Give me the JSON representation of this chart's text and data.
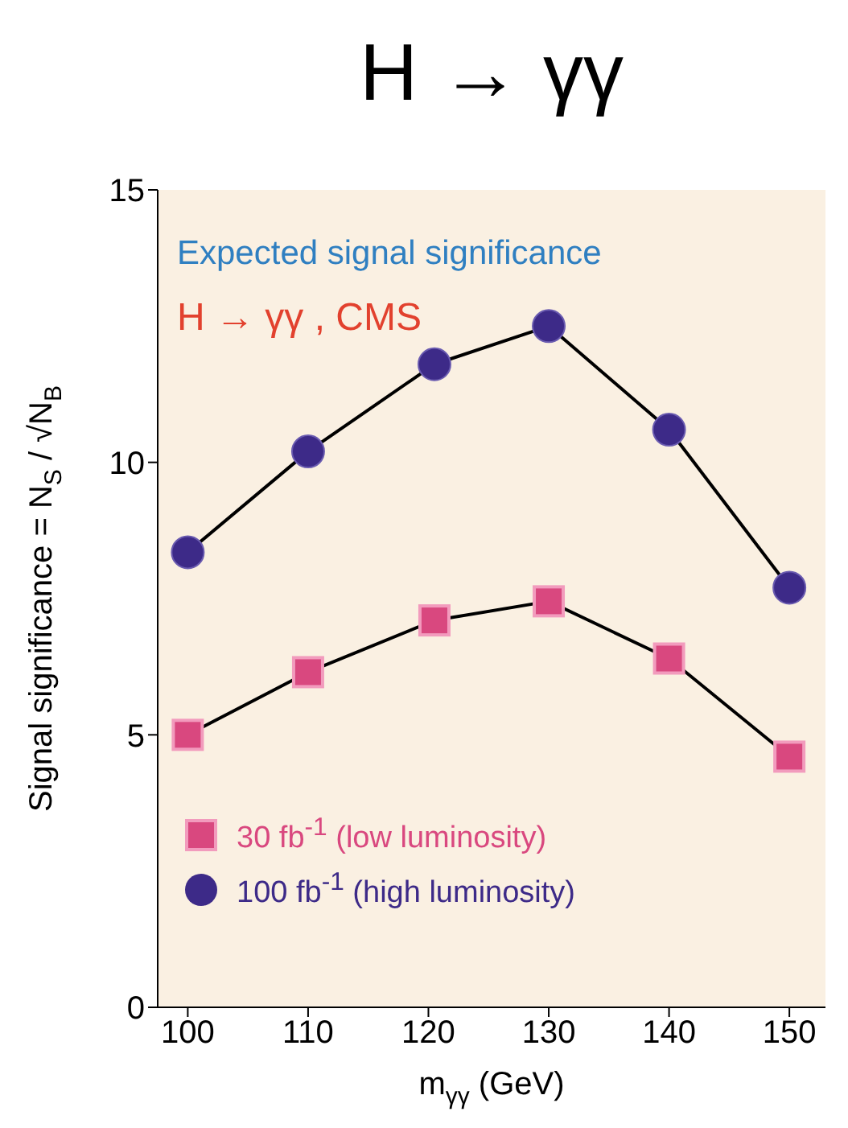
{
  "chart_data": {
    "type": "line",
    "title": "H → γγ",
    "xlabel": "m$_{γγ}$ (GeV)",
    "ylabel": "Signal significance = N$_{S}$ / √N$_{B}$",
    "annotations": [
      "Expected signal significance",
      "H → γγ , CMS"
    ],
    "x": [
      100,
      110,
      120.5,
      130,
      140,
      150
    ],
    "series": [
      {
        "name": "30 fb$^{-1}$ (low luminosity)",
        "color": "#d9487f",
        "marker": "square",
        "values": [
          5.0,
          6.15,
          7.1,
          7.45,
          6.4,
          4.6
        ]
      },
      {
        "name": "100 fb$^{-1}$ (high luminosity)",
        "color": "#3d2a88",
        "marker": "circle",
        "values": [
          8.35,
          10.2,
          11.8,
          12.5,
          10.6,
          7.7
        ]
      }
    ],
    "xlim": [
      97.5,
      153
    ],
    "xticks": [
      100,
      110,
      120,
      130,
      140,
      150
    ],
    "ylim": [
      0,
      15
    ],
    "yticks": [
      0,
      5,
      10,
      15
    ],
    "legend": "bottom left"
  }
}
